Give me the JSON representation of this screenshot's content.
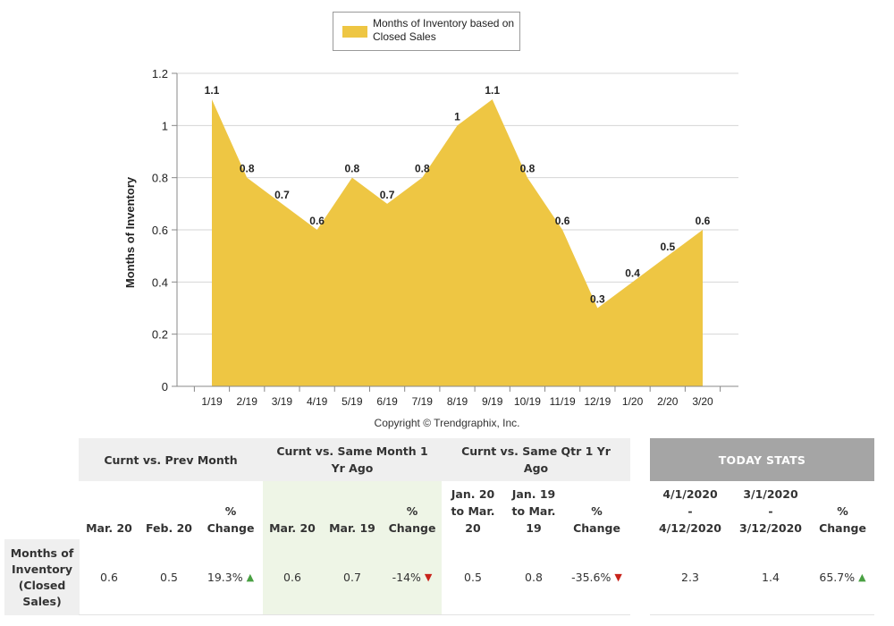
{
  "chart_data": {
    "type": "area",
    "title": "",
    "legend": "Months of Inventory based on Closed Sales",
    "xlabel": "",
    "ylabel": "Months of Inventory",
    "ylim": [
      0,
      1.2
    ],
    "yticks": [
      "0",
      "0.2",
      "0.4",
      "0.6",
      "0.8",
      "1",
      "1.2"
    ],
    "categories": [
      "1/19",
      "2/19",
      "3/19",
      "4/19",
      "5/19",
      "6/19",
      "7/19",
      "8/19",
      "9/19",
      "10/19",
      "11/19",
      "12/19",
      "1/20",
      "2/20",
      "3/20"
    ],
    "values": [
      1.1,
      0.8,
      0.7,
      0.6,
      0.8,
      0.7,
      0.8,
      1,
      1.1,
      0.8,
      0.6,
      0.3,
      0.4,
      0.5,
      0.6
    ],
    "value_labels": [
      "1.1",
      "0.8",
      "0.7",
      "0.6",
      "0.8",
      "0.7",
      "0.8",
      "1",
      "1.1",
      "0.8",
      "0.6",
      "0.3",
      "0.4",
      "0.5",
      "0.6"
    ],
    "fill_color": "#EEC643",
    "copyright": "Copyright © Trendgraphix, Inc."
  },
  "table": {
    "groups": {
      "prev_month": "Curnt vs. Prev Month",
      "same_month": "Curnt vs. Same Month 1 Yr Ago",
      "same_qtr": "Curnt vs. Same Qtr 1 Yr Ago",
      "today": "TODAY STATS"
    },
    "columns": {
      "c1": "Mar. 20",
      "c2": "Feb. 20",
      "c3": "% Change",
      "c4": "Mar. 20",
      "c5": "Mar. 19",
      "c6": "% Change",
      "c7": "Jan. 20 to Mar. 20",
      "c8": "Jan. 19 to Mar. 19",
      "c9": "% Change",
      "c10_start": "4/1/2020",
      "c10_sep": "-",
      "c10_end": "4/12/2020",
      "c11_start": "3/1/2020",
      "c11_sep": "-",
      "c11_end": "3/12/2020",
      "c12": "% Change"
    },
    "row": {
      "label": "Months of Inventory (Closed Sales)",
      "c1": "0.6",
      "c2": "0.5",
      "c3": "19.3%",
      "c4": "0.6",
      "c5": "0.7",
      "c6": "-14%",
      "c7": "0.5",
      "c8": "0.8",
      "c9": "-35.6%",
      "c10": "2.3",
      "c11": "1.4",
      "c12": "65.7%"
    },
    "colors": {
      "up": "#49a042",
      "down": "#c8231b",
      "today_bg": "#a5a5a5"
    }
  }
}
